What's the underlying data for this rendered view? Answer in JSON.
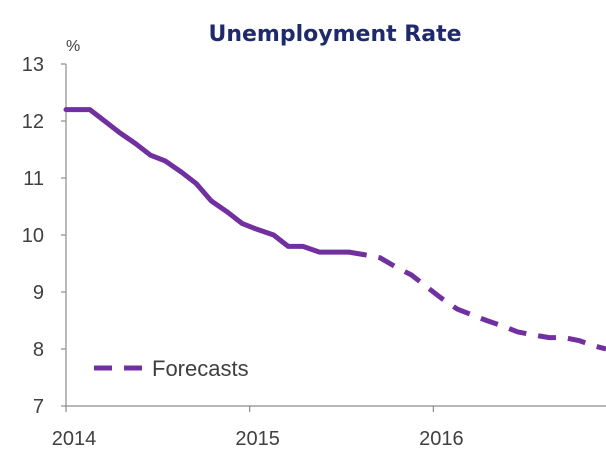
{
  "chart_data": {
    "type": "line",
    "title": "Unemployment Rate",
    "unit_label": "%",
    "xlabel": "",
    "ylabel": "",
    "x_range": [
      2014.0,
      2016.94
    ],
    "ylim": [
      7,
      13
    ],
    "y_ticks": [
      7,
      8,
      9,
      10,
      11,
      12,
      13
    ],
    "x_ticks": [
      {
        "value": 2014,
        "label": "2014"
      },
      {
        "value": 2015,
        "label": "2015"
      },
      {
        "value": 2016,
        "label": "2016"
      }
    ],
    "grid": false,
    "legend_placement": "bottom-left",
    "colors": {
      "series": "#7030a0",
      "title": "#1f2a6d",
      "axis": "#8c8c8c",
      "text": "#404040"
    },
    "series": [
      {
        "style": "solid",
        "points": [
          {
            "x": 2014.0,
            "y": 12.2
          },
          {
            "x": 2014.13,
            "y": 12.2
          },
          {
            "x": 2014.21,
            "y": 12.0
          },
          {
            "x": 2014.29,
            "y": 11.8
          },
          {
            "x": 2014.38,
            "y": 11.6
          },
          {
            "x": 2014.46,
            "y": 11.4
          },
          {
            "x": 2014.54,
            "y": 11.3
          },
          {
            "x": 2014.63,
            "y": 11.1
          },
          {
            "x": 2014.71,
            "y": 10.9
          },
          {
            "x": 2014.79,
            "y": 10.6
          },
          {
            "x": 2014.88,
            "y": 10.4
          },
          {
            "x": 2014.96,
            "y": 10.2
          },
          {
            "x": 2015.04,
            "y": 10.1
          },
          {
            "x": 2015.13,
            "y": 10.0
          },
          {
            "x": 2015.21,
            "y": 9.8
          },
          {
            "x": 2015.29,
            "y": 9.8
          },
          {
            "x": 2015.38,
            "y": 9.7
          },
          {
            "x": 2015.46,
            "y": 9.7
          },
          {
            "x": 2015.54,
            "y": 9.7
          }
        ]
      },
      {
        "name": "Forecasts",
        "style": "dashed",
        "points": [
          {
            "x": 2015.54,
            "y": 9.7
          },
          {
            "x": 2015.63,
            "y": 9.65
          },
          {
            "x": 2015.71,
            "y": 9.6
          },
          {
            "x": 2015.79,
            "y": 9.45
          },
          {
            "x": 2015.88,
            "y": 9.3
          },
          {
            "x": 2015.96,
            "y": 9.1
          },
          {
            "x": 2016.04,
            "y": 8.9
          },
          {
            "x": 2016.13,
            "y": 8.7
          },
          {
            "x": 2016.21,
            "y": 8.6
          },
          {
            "x": 2016.29,
            "y": 8.5
          },
          {
            "x": 2016.38,
            "y": 8.4
          },
          {
            "x": 2016.46,
            "y": 8.3
          },
          {
            "x": 2016.54,
            "y": 8.25
          },
          {
            "x": 2016.63,
            "y": 8.2
          },
          {
            "x": 2016.71,
            "y": 8.2
          },
          {
            "x": 2016.79,
            "y": 8.15
          },
          {
            "x": 2016.88,
            "y": 8.05
          },
          {
            "x": 2016.94,
            "y": 8.0
          }
        ]
      }
    ]
  }
}
